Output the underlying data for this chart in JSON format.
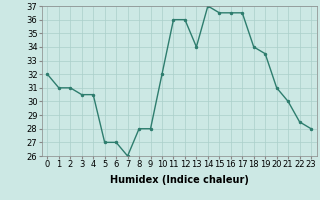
{
  "xlabel": "Humidex (Indice chaleur)",
  "ylabel": "",
  "x": [
    0,
    1,
    2,
    3,
    4,
    5,
    6,
    7,
    8,
    9,
    10,
    11,
    12,
    13,
    14,
    15,
    16,
    17,
    18,
    19,
    20,
    21,
    22,
    23
  ],
  "y": [
    32,
    31,
    31,
    30.5,
    30.5,
    27,
    27,
    26,
    28,
    28,
    32,
    36,
    36,
    34,
    37,
    36.5,
    36.5,
    36.5,
    34,
    33.5,
    31,
    30,
    28.5,
    28
  ],
  "ylim": [
    26,
    37
  ],
  "xlim": [
    -0.5,
    23.5
  ],
  "yticks": [
    26,
    27,
    28,
    29,
    30,
    31,
    32,
    33,
    34,
    35,
    36,
    37
  ],
  "xticks": [
    0,
    1,
    2,
    3,
    4,
    5,
    6,
    7,
    8,
    9,
    10,
    11,
    12,
    13,
    14,
    15,
    16,
    17,
    18,
    19,
    20,
    21,
    22,
    23
  ],
  "line_color": "#2e7d6e",
  "marker_color": "#2e7d6e",
  "bg_color": "#cce8e4",
  "grid_color": "#aacfca",
  "title_fontsize": 7,
  "label_fontsize": 7,
  "tick_fontsize": 6
}
